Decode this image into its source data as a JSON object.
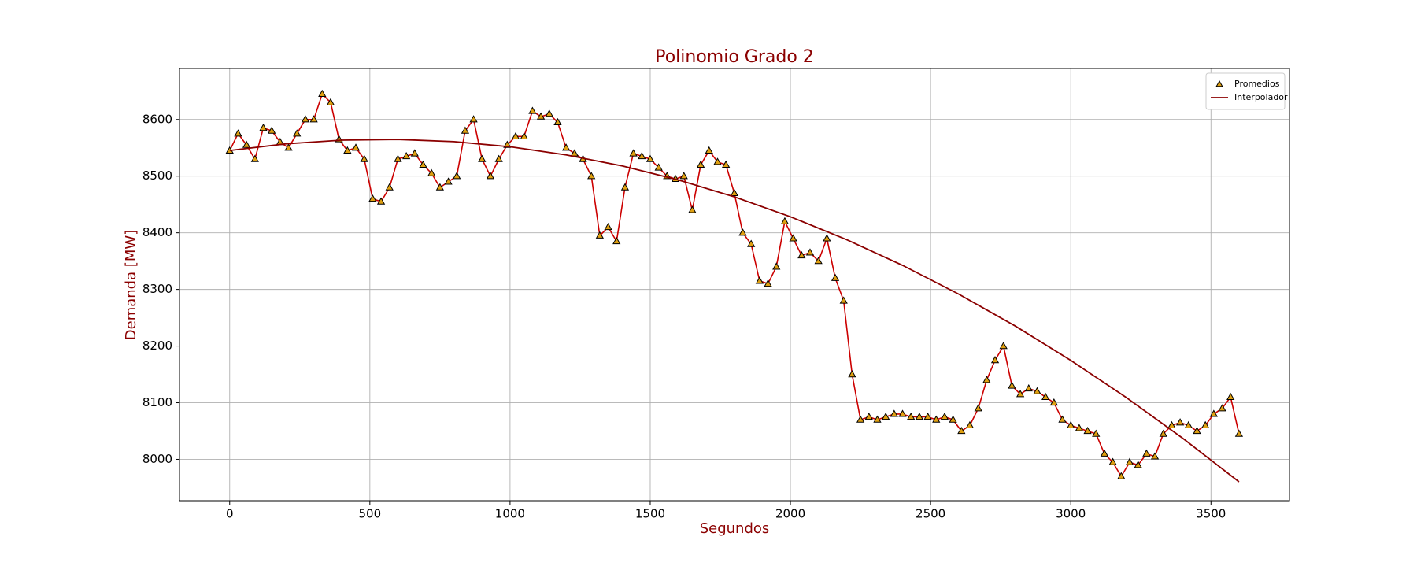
{
  "chart_data": {
    "type": "line",
    "title": "Polinomio Grado 2",
    "x_label": "Segundos",
    "y_label": "Demanda [MW]",
    "xlim": [
      -179,
      3780
    ],
    "ylim": [
      7927,
      8690
    ],
    "xticks": [
      0,
      500,
      1000,
      1500,
      2000,
      2500,
      3000,
      3500
    ],
    "yticks": [
      8000,
      8100,
      8200,
      8300,
      8400,
      8500,
      8600
    ],
    "grid": true,
    "legend": "upper right",
    "series": [
      {
        "name": "Promedios",
        "marker": "triangle",
        "color": "#e0a010",
        "line_color": "#cc0000",
        "x": [
          0,
          30,
          60,
          90,
          120,
          150,
          180,
          210,
          240,
          270,
          300,
          330,
          360,
          390,
          420,
          450,
          480,
          510,
          540,
          570,
          600,
          630,
          660,
          690,
          720,
          750,
          780,
          810,
          840,
          870,
          900,
          930,
          960,
          990,
          1020,
          1050,
          1080,
          1110,
          1140,
          1170,
          1200,
          1230,
          1260,
          1290,
          1320,
          1350,
          1380,
          1410,
          1440,
          1470,
          1500,
          1530,
          1560,
          1590,
          1620,
          1650,
          1680,
          1710,
          1740,
          1770,
          1800,
          1830,
          1860,
          1890,
          1920,
          1950,
          1980,
          2010,
          2040,
          2070,
          2100,
          2130,
          2160,
          2190,
          2220,
          2250,
          2280,
          2310,
          2340,
          2370,
          2400,
          2430,
          2460,
          2490,
          2520,
          2550,
          2580,
          2610,
          2640,
          2670,
          2700,
          2730,
          2760,
          2790,
          2820,
          2850,
          2880,
          2910,
          2940,
          2970,
          3000,
          3030,
          3060,
          3090,
          3120,
          3150,
          3180,
          3210,
          3240,
          3270,
          3300,
          3330,
          3360,
          3390,
          3420,
          3450,
          3480,
          3510,
          3540,
          3570,
          3600
        ],
        "values": [
          8545,
          8575,
          8555,
          8530,
          8585,
          8580,
          8560,
          8550,
          8575,
          8600,
          8600,
          8645,
          8630,
          8565,
          8545,
          8550,
          8530,
          8460,
          8455,
          8480,
          8530,
          8535,
          8540,
          8520,
          8505,
          8480,
          8490,
          8500,
          8580,
          8600,
          8530,
          8500,
          8530,
          8555,
          8570,
          8570,
          8615,
          8605,
          8610,
          8595,
          8550,
          8540,
          8530,
          8500,
          8395,
          8410,
          8385,
          8480,
          8540,
          8535,
          8530,
          8515,
          8500,
          8495,
          8500,
          8440,
          8520,
          8545,
          8525,
          8520,
          8470,
          8400,
          8380,
          8315,
          8310,
          8340,
          8420,
          8390,
          8360,
          8365,
          8350,
          8390,
          8320,
          8280,
          8150,
          8070,
          8075,
          8070,
          8075,
          8080,
          8080,
          8075,
          8075,
          8075,
          8070,
          8075,
          8070,
          8050,
          8060,
          8090,
          8140,
          8175,
          8200,
          8130,
          8115,
          8125,
          8120,
          8110,
          8100,
          8070,
          8060,
          8055,
          8050,
          8045,
          8010,
          7995,
          7970,
          7995,
          7990,
          8010,
          8005,
          8045,
          8060,
          8065,
          8060,
          8050,
          8060,
          8080,
          8090,
          8110,
          8045
        ]
      },
      {
        "name": "Interpolador",
        "color": "#8b0000",
        "x": [
          0,
          200,
          400,
          600,
          800,
          1000,
          1200,
          1400,
          1600,
          1800,
          2000,
          2200,
          2400,
          2600,
          2800,
          3000,
          3200,
          3400,
          3600
        ],
        "values": [
          8545.3,
          8557.0,
          8563.5,
          8564.8,
          8560.9,
          8551.8,
          8537.5,
          8518.0,
          8493.3,
          8463.4,
          8428.3,
          8388.0,
          8342.5,
          8291.8,
          8235.9,
          8174.8,
          8108.5,
          8037.0,
          7960.4
        ]
      }
    ]
  }
}
